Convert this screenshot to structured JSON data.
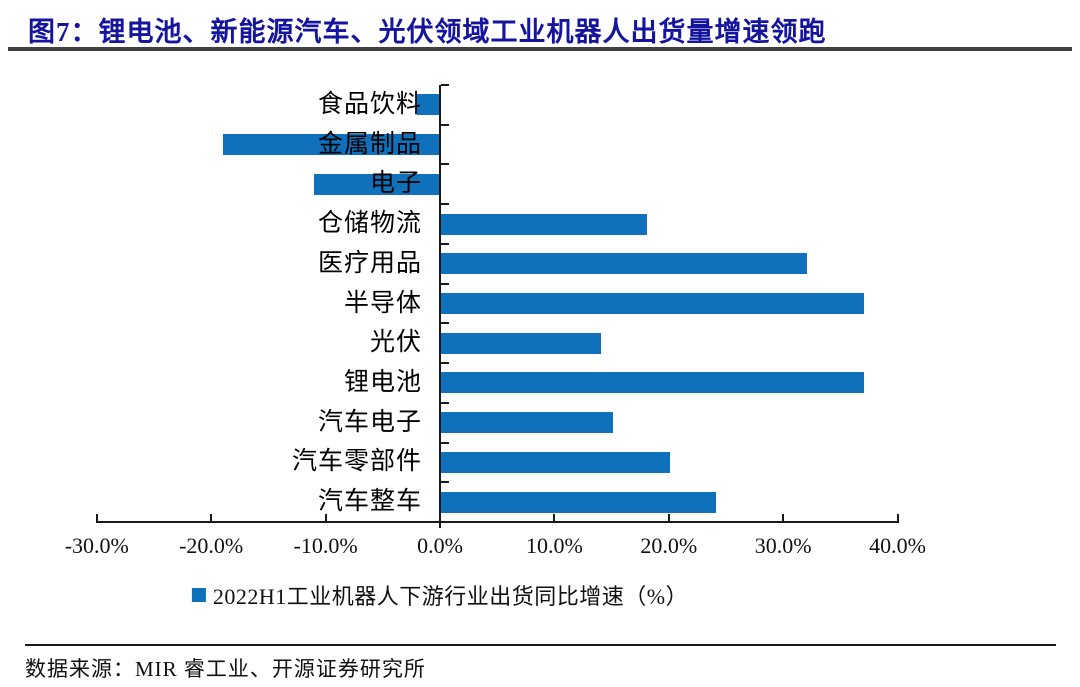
{
  "header": {
    "title": "图7：锂电池、新能源汽车、光伏领域工业机器人出货量增速领跑"
  },
  "chart_data": {
    "type": "bar",
    "orientation": "horizontal",
    "title": "图7：锂电池、新能源汽车、光伏领域工业机器人出货量增速领跑",
    "categories": [
      "食品饮料",
      "金属制品",
      "电子",
      "仓储物流",
      "医疗用品",
      "半导体",
      "光伏",
      "锂电池",
      "汽车电子",
      "汽车零部件",
      "汽车整车"
    ],
    "values": [
      -2,
      -19,
      -11,
      18,
      32,
      37,
      14,
      37,
      15,
      20,
      24
    ],
    "unit": "%",
    "series_name": "2022H1工业机器人下游行业出货同比增速（%）",
    "xlim": [
      -30,
      40
    ],
    "x_ticks": [
      -30,
      -20,
      -10,
      0,
      10,
      20,
      30,
      40
    ],
    "x_tick_labels": [
      "-30.0%",
      "-20.0%",
      "-10.0%",
      "0.0%",
      "10.0%",
      "20.0%",
      "30.0%",
      "40.0%"
    ],
    "grid": false,
    "legend_position": "bottom",
    "bar_color": "#0F71BC"
  },
  "legend": {
    "label": "2022H1工业机器人下游行业出货同比增速（%）",
    "marker": "square-icon",
    "color": "#0F71BC"
  },
  "footer": {
    "source": "数据来源：MIR 睿工业、开源证券研究所"
  },
  "colors": {
    "bar": "#0F71BC",
    "title": "#14149E",
    "axis": "#1a1a1a",
    "title_rule": "#3F3F3F"
  }
}
